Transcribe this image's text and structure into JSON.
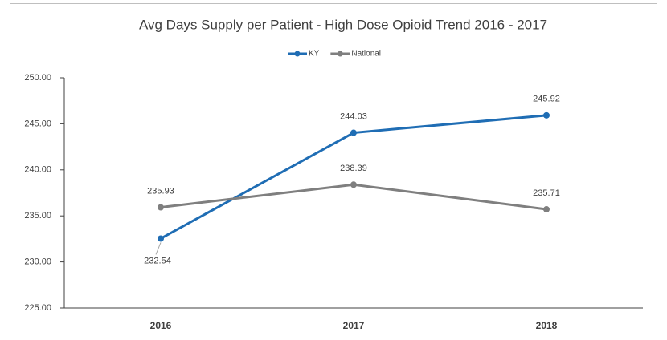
{
  "chart_data": {
    "type": "line",
    "title": "Avg Days Supply per Patient - High Dose Opioid Trend 2016 - 2017",
    "categories": [
      "2016",
      "2017",
      "2018"
    ],
    "series": [
      {
        "name": "KY",
        "color": "#1f6db4",
        "values": [
          232.54,
          244.03,
          245.92
        ]
      },
      {
        "name": "National",
        "color": "#7f7f7f",
        "values": [
          235.93,
          238.39,
          235.71
        ]
      }
    ],
    "ylim": [
      225,
      250
    ],
    "yticks": [
      {
        "value": 225,
        "label": "225.00"
      },
      {
        "value": 230,
        "label": "230.00"
      },
      {
        "value": 235,
        "label": "235.00"
      },
      {
        "value": 240,
        "label": "240.00"
      },
      {
        "value": 245,
        "label": "245.00"
      },
      {
        "value": 250,
        "label": "250.00"
      }
    ],
    "grid": false,
    "legend": "top"
  }
}
